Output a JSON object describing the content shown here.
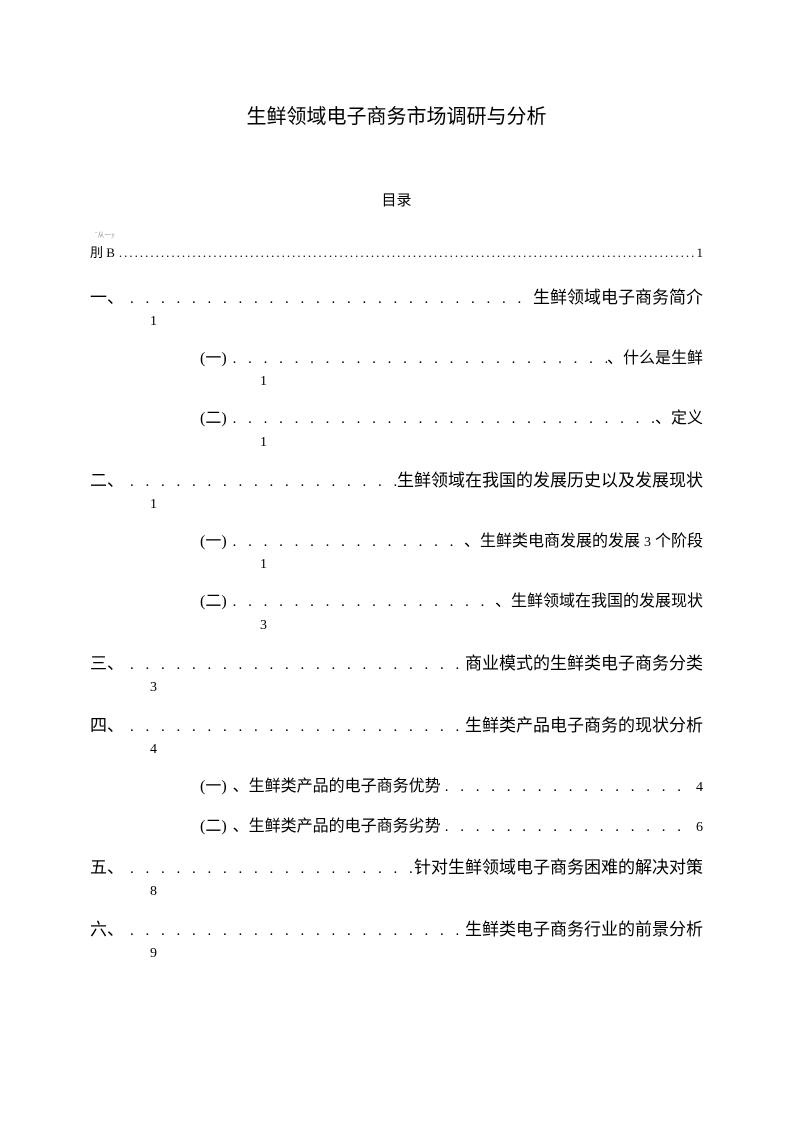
{
  "title": "生鲜领域电子商务市场调研与分析",
  "subtitle": "目录",
  "scribble": "ˇ从一y",
  "topline": {
    "prefix": "刖 B",
    "page": "1"
  },
  "entries": [
    {
      "level": 1,
      "layout": "dots-then-text",
      "marker": "一、",
      "text": "生鲜领域电子商务简介",
      "page": "1"
    },
    {
      "level": 2,
      "layout": "dots-then-text",
      "marker": "(一)",
      "text": "、什么是生鲜",
      "page": "1"
    },
    {
      "level": 2,
      "layout": "dots-then-text",
      "marker": "(二)",
      "text": "、定义",
      "page": "1"
    },
    {
      "level": 1,
      "layout": "dots-then-text",
      "marker": "二、",
      "text": "生鲜领域在我国的发展历史以及发展现状",
      "page": "1"
    },
    {
      "level": 2,
      "layout": "dots-then-text",
      "marker": "(一)",
      "text": "、生鲜类电商发展的发展 <span class=\"small-num\">3</span> 个阶段",
      "page": "1"
    },
    {
      "level": 2,
      "layout": "dots-then-text",
      "marker": "(二)",
      "text": "、生鲜领域在我国的发展现状",
      "page": "3"
    },
    {
      "level": 1,
      "layout": "dots-then-text",
      "marker": "三、",
      "text": "商业模式的生鲜类电子商务分类",
      "page": "3"
    },
    {
      "level": 1,
      "layout": "dots-then-text",
      "marker": "四、",
      "text": "生鲜类产品电子商务的现状分析",
      "page": "4"
    },
    {
      "level": 2,
      "layout": "text-then-dots",
      "marker": "(一)",
      "text": "、生鲜类产品的电子商务优势",
      "page": "4"
    },
    {
      "level": 2,
      "layout": "text-then-dots",
      "marker": "(二)",
      "text": "、生鲜类产品的电子商务劣势",
      "page": "6"
    },
    {
      "level": 1,
      "layout": "dots-then-text",
      "marker": "五、",
      "text": "针对生鲜领域电子商务困难的解决对策",
      "page": "8"
    },
    {
      "level": 1,
      "layout": "dots-then-text",
      "marker": "六、",
      "text": "生鲜类电子商务行业的前景分析",
      "page": "9"
    }
  ],
  "colors": {
    "background": "#ffffff",
    "text": "#000000"
  }
}
